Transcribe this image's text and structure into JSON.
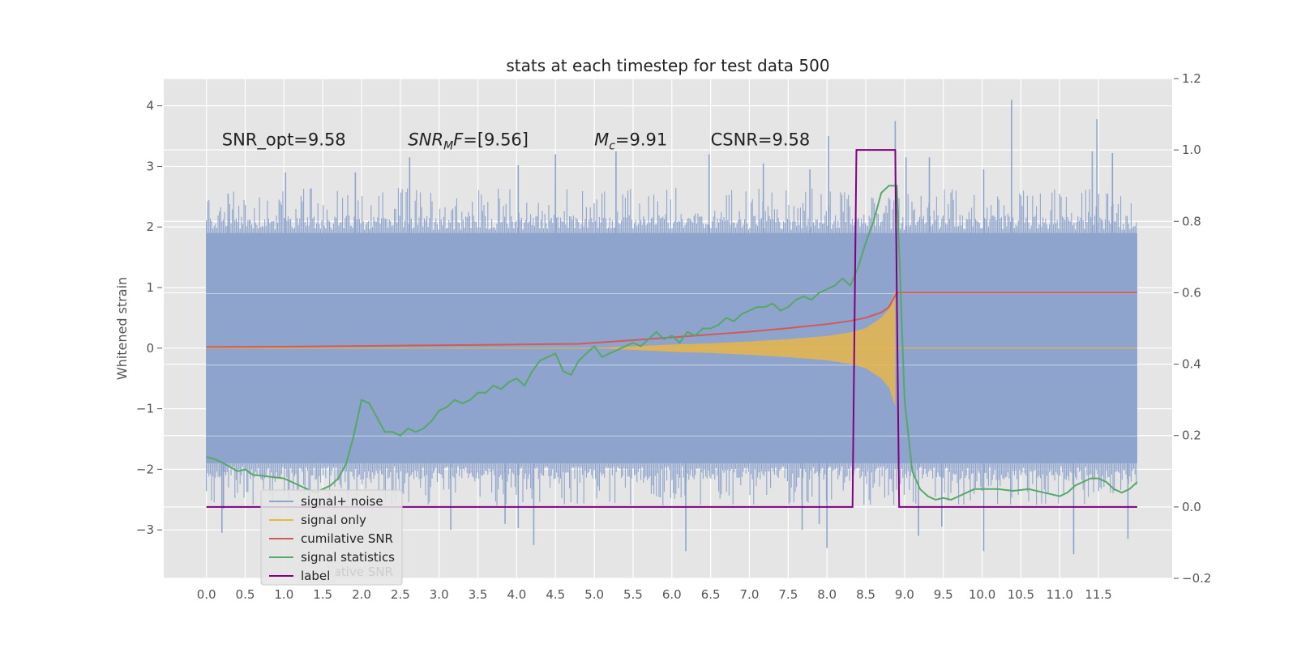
{
  "chart_data": {
    "type": "line",
    "title": "stats at each timestep for test data 500",
    "xlabel": "",
    "ylabel": "Whitened strain",
    "y2label": "",
    "xlim": [
      -0.55,
      12.45
    ],
    "ylim": [
      -3.8,
      4.45
    ],
    "y2lim": [
      -0.2,
      1.2
    ],
    "x_ticks": [
      "0.0",
      "0.5",
      "1.0",
      "1.5",
      "2.0",
      "2.5",
      "3.0",
      "3.5",
      "4.0",
      "4.5",
      "5.0",
      "5.5",
      "6.0",
      "6.5",
      "7.0",
      "7.5",
      "8.0",
      "8.5",
      "9.0",
      "9.5",
      "10.0",
      "10.5",
      "11.0",
      "11.5"
    ],
    "y_ticks": [
      -3,
      -2,
      -1,
      0,
      1,
      2,
      3,
      4
    ],
    "y2_ticks": [
      -0.2,
      0.0,
      0.2,
      0.4,
      0.6,
      0.8,
      1.0,
      1.2
    ],
    "grid": true,
    "legend_position": "lower-left",
    "annotations": [
      {
        "text": "SNR_opt=9.58",
        "x": 0.2,
        "y": 3.35
      },
      {
        "text": "SNR",
        "sub": "M",
        "suffix": "F=[9.56]",
        "x": 2.6,
        "y": 3.35
      },
      {
        "text": "M",
        "sub": "c",
        "suffix": "=9.91",
        "x": 5.0,
        "y": 3.35
      },
      {
        "text": "CSNR=9.58",
        "x": 6.5,
        "y": 3.35
      }
    ],
    "ghost_legend_text": "cumilative SNR",
    "series": [
      {
        "name": "signal+ noise",
        "color": "#8fa4cc",
        "axis": "left",
        "kind": "noise",
        "x_range": [
          0.0,
          12.0
        ],
        "envelope_upper": 1.9,
        "envelope_lower": -1.9,
        "spikes": [
          [
            0.28,
            2.55
          ],
          [
            1.02,
            2.9
          ],
          [
            1.92,
            2.9
          ],
          [
            2.62,
            3.15
          ],
          [
            4.02,
            3.02
          ],
          [
            4.5,
            3.2
          ],
          [
            5.28,
            3.25
          ],
          [
            6.48,
            3.2
          ],
          [
            7.18,
            3.05
          ],
          [
            7.78,
            2.95
          ],
          [
            8.02,
            3.5
          ],
          [
            8.88,
            3.75
          ],
          [
            9.02,
            3.15
          ],
          [
            9.32,
            3.15
          ],
          [
            10.02,
            2.95
          ],
          [
            10.38,
            4.1
          ],
          [
            11.42,
            3.25
          ],
          [
            11.48,
            3.78
          ],
          [
            11.68,
            3.22
          ],
          [
            0.22,
            -2.65
          ],
          [
            0.2,
            -3.05
          ],
          [
            3.15,
            -3.0
          ],
          [
            3.85,
            -2.9
          ],
          [
            4.02,
            -2.97
          ],
          [
            4.22,
            -3.25
          ],
          [
            6.18,
            -3.35
          ],
          [
            7.68,
            -3.0
          ],
          [
            7.9,
            -2.9
          ],
          [
            8.0,
            -3.3
          ],
          [
            9.18,
            -3.1
          ],
          [
            9.48,
            -2.95
          ],
          [
            10.02,
            -3.35
          ],
          [
            11.18,
            -3.4
          ],
          [
            11.88,
            -3.15
          ]
        ]
      },
      {
        "name": "signal only",
        "color": "#e8b64a",
        "axis": "left",
        "kind": "chirp",
        "envelope": [
          [
            5.0,
            0.0
          ],
          [
            5.5,
            0.03
          ],
          [
            6.0,
            0.06
          ],
          [
            6.5,
            0.08
          ],
          [
            7.0,
            0.11
          ],
          [
            7.5,
            0.15
          ],
          [
            8.0,
            0.2
          ],
          [
            8.3,
            0.26
          ],
          [
            8.5,
            0.33
          ],
          [
            8.7,
            0.5
          ],
          [
            8.8,
            0.65
          ],
          [
            8.85,
            0.85
          ],
          [
            8.88,
            0.95
          ],
          [
            8.9,
            0.0
          ],
          [
            12.0,
            0.0
          ]
        ]
      },
      {
        "name": "cumilative SNR",
        "color": "#d15a5a",
        "axis": "right",
        "x": [
          0.0,
          1.0,
          2.0,
          3.0,
          4.0,
          4.8,
          5.5,
          6.0,
          6.5,
          7.0,
          7.5,
          8.0,
          8.3,
          8.5,
          8.7,
          8.8,
          8.9,
          9.0,
          12.0
        ],
        "y": [
          0.448,
          0.449,
          0.451,
          0.453,
          0.455,
          0.457,
          0.467,
          0.475,
          0.483,
          0.491,
          0.501,
          0.512,
          0.521,
          0.53,
          0.545,
          0.56,
          0.6,
          0.6,
          0.6
        ]
      },
      {
        "name": "signal statistics",
        "color": "#55a868",
        "axis": "right",
        "x": [
          0.0,
          0.1,
          0.2,
          0.4,
          0.5,
          0.6,
          0.8,
          1.0,
          1.4,
          1.5,
          1.6,
          1.7,
          1.8,
          1.9,
          2.0,
          2.1,
          2.2,
          2.3,
          2.4,
          2.5,
          2.6,
          2.7,
          2.8,
          2.9,
          3.0,
          3.1,
          3.2,
          3.3,
          3.4,
          3.5,
          3.6,
          3.7,
          3.8,
          3.9,
          4.0,
          4.1,
          4.2,
          4.3,
          4.4,
          4.5,
          4.6,
          4.7,
          4.8,
          4.9,
          5.0,
          5.1,
          5.2,
          5.3,
          5.4,
          5.5,
          5.6,
          5.7,
          5.8,
          5.9,
          6.0,
          6.1,
          6.2,
          6.3,
          6.4,
          6.5,
          6.6,
          6.7,
          6.8,
          6.9,
          7.0,
          7.1,
          7.2,
          7.3,
          7.4,
          7.5,
          7.6,
          7.7,
          7.8,
          7.9,
          8.0,
          8.1,
          8.2,
          8.3,
          8.4,
          8.5,
          8.6,
          8.7,
          8.8,
          8.9,
          9.0,
          9.1,
          9.2,
          9.3,
          9.4,
          9.5,
          9.6,
          9.7,
          9.8,
          9.9,
          10.0,
          10.2,
          10.4,
          10.6,
          10.8,
          11.0,
          11.1,
          11.2,
          11.3,
          11.4,
          11.5,
          11.6,
          11.7,
          11.8,
          11.9,
          12.0
        ],
        "y": [
          0.14,
          0.135,
          0.125,
          0.1,
          0.105,
          0.09,
          0.085,
          0.08,
          0.04,
          0.05,
          0.06,
          0.08,
          0.12,
          0.2,
          0.3,
          0.29,
          0.25,
          0.21,
          0.21,
          0.2,
          0.22,
          0.21,
          0.22,
          0.24,
          0.27,
          0.28,
          0.3,
          0.29,
          0.3,
          0.32,
          0.32,
          0.34,
          0.33,
          0.35,
          0.36,
          0.34,
          0.38,
          0.41,
          0.42,
          0.43,
          0.38,
          0.37,
          0.41,
          0.43,
          0.45,
          0.42,
          0.43,
          0.44,
          0.45,
          0.46,
          0.45,
          0.47,
          0.49,
          0.47,
          0.48,
          0.46,
          0.49,
          0.48,
          0.5,
          0.5,
          0.51,
          0.53,
          0.52,
          0.54,
          0.55,
          0.56,
          0.56,
          0.57,
          0.55,
          0.56,
          0.58,
          0.59,
          0.58,
          0.6,
          0.61,
          0.62,
          0.64,
          0.62,
          0.67,
          0.74,
          0.8,
          0.88,
          0.9,
          0.9,
          0.3,
          0.1,
          0.05,
          0.03,
          0.02,
          0.025,
          0.02,
          0.03,
          0.04,
          0.05,
          0.05,
          0.05,
          0.045,
          0.05,
          0.04,
          0.03,
          0.04,
          0.06,
          0.07,
          0.08,
          0.08,
          0.07,
          0.05,
          0.04,
          0.05,
          0.07
        ],
        "spike": [
          [
            8.33,
            0.63
          ],
          [
            8.4,
            0.6
          ]
        ]
      },
      {
        "name": "label",
        "color": "#800080",
        "axis": "right",
        "x": [
          0.0,
          8.33,
          8.38,
          8.88,
          8.93,
          12.0
        ],
        "y": [
          0.0,
          0.0,
          1.0,
          1.0,
          0.0,
          0.0
        ]
      }
    ]
  }
}
